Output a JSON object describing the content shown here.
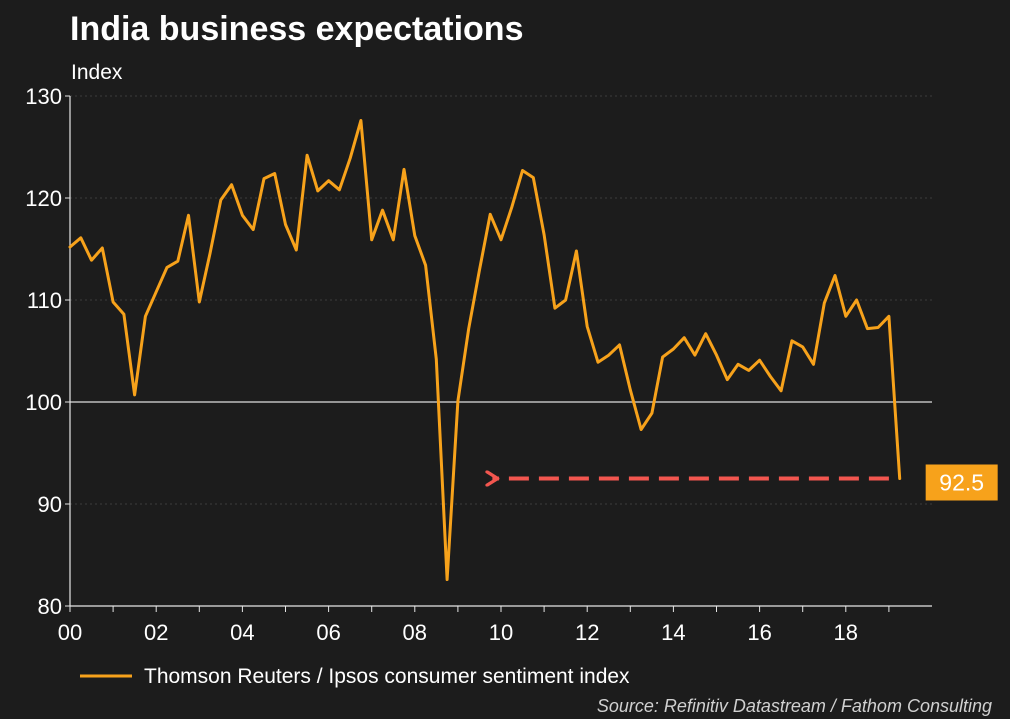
{
  "chart_data": {
    "type": "line",
    "title": "India business expectations",
    "ylabel": "Index",
    "ylim": [
      80,
      130
    ],
    "yticks": [
      80,
      90,
      100,
      110,
      120,
      130
    ],
    "xlim": [
      2000,
      2020
    ],
    "xticks": [
      {
        "value": 2000,
        "label": "00"
      },
      {
        "value": 2002,
        "label": "02"
      },
      {
        "value": 2004,
        "label": "04"
      },
      {
        "value": 2006,
        "label": "06"
      },
      {
        "value": 2008,
        "label": "08"
      },
      {
        "value": 2010,
        "label": "10"
      },
      {
        "value": 2012,
        "label": "12"
      },
      {
        "value": 2014,
        "label": "14"
      },
      {
        "value": 2016,
        "label": "16"
      },
      {
        "value": 2018,
        "label": "18"
      }
    ],
    "reference_line": 100,
    "series": [
      {
        "name": "Thomson Reuters / Ipsos consumer sentiment index",
        "color": "#f7a21b",
        "x": [
          2000.0,
          2000.25,
          2000.5,
          2000.75,
          2001.0,
          2001.25,
          2001.5,
          2001.75,
          2002.0,
          2002.25,
          2002.5,
          2002.75,
          2003.0,
          2003.25,
          2003.5,
          2003.75,
          2004.0,
          2004.25,
          2004.5,
          2004.75,
          2005.0,
          2005.25,
          2005.5,
          2005.75,
          2006.0,
          2006.25,
          2006.5,
          2006.75,
          2007.0,
          2007.25,
          2007.5,
          2007.75,
          2008.0,
          2008.25,
          2008.5,
          2008.75,
          2009.0,
          2009.25,
          2009.5,
          2009.75,
          2010.0,
          2010.25,
          2010.5,
          2010.75,
          2011.0,
          2011.25,
          2011.5,
          2011.75,
          2012.0,
          2012.25,
          2012.5,
          2012.75,
          2013.0,
          2013.25,
          2013.5,
          2013.75,
          2014.0,
          2014.25,
          2014.5,
          2014.75,
          2015.0,
          2015.25,
          2015.5,
          2015.75,
          2016.0,
          2016.25,
          2016.5,
          2016.75,
          2017.0,
          2017.25,
          2017.5,
          2017.75,
          2018.0,
          2018.25,
          2018.5,
          2018.75,
          2019.0,
          2019.25
        ],
        "values": [
          115.2,
          116.1,
          113.9,
          115.1,
          109.8,
          108.6,
          100.7,
          108.4,
          110.8,
          113.2,
          113.8,
          118.3,
          109.8,
          114.6,
          119.8,
          121.3,
          118.3,
          116.9,
          121.9,
          122.4,
          117.4,
          114.9,
          124.2,
          120.7,
          121.7,
          120.8,
          123.9,
          127.6,
          115.9,
          118.8,
          115.9,
          122.8,
          116.3,
          113.4,
          104.2,
          82.6,
          100.1,
          107.2,
          112.9,
          118.4,
          115.9,
          119.1,
          122.7,
          122.0,
          116.4,
          109.2,
          110.0,
          114.8,
          107.4,
          103.9,
          104.6,
          105.6,
          101.2,
          97.3,
          98.9,
          104.4,
          105.2,
          106.3,
          104.6,
          106.7,
          104.6,
          102.2,
          103.7,
          103.1,
          104.1,
          102.5,
          101.1,
          106.0,
          105.4,
          103.7,
          109.7,
          112.4,
          108.4,
          110.0,
          107.2,
          107.3,
          108.4,
          92.5
        ]
      }
    ],
    "annotation": {
      "label": "92.5",
      "value": 92.5,
      "arrow_from_x": 2019.0,
      "arrow_to_x": 2009.8,
      "arrow_color": "#f2564f",
      "label_bg": "#f7a21b"
    },
    "legend": {
      "position": "bottom-left",
      "label": "Thomson Reuters / Ipsos consumer sentiment index"
    },
    "source": "Source: Refinitiv Datastream / Fathom Consulting"
  }
}
